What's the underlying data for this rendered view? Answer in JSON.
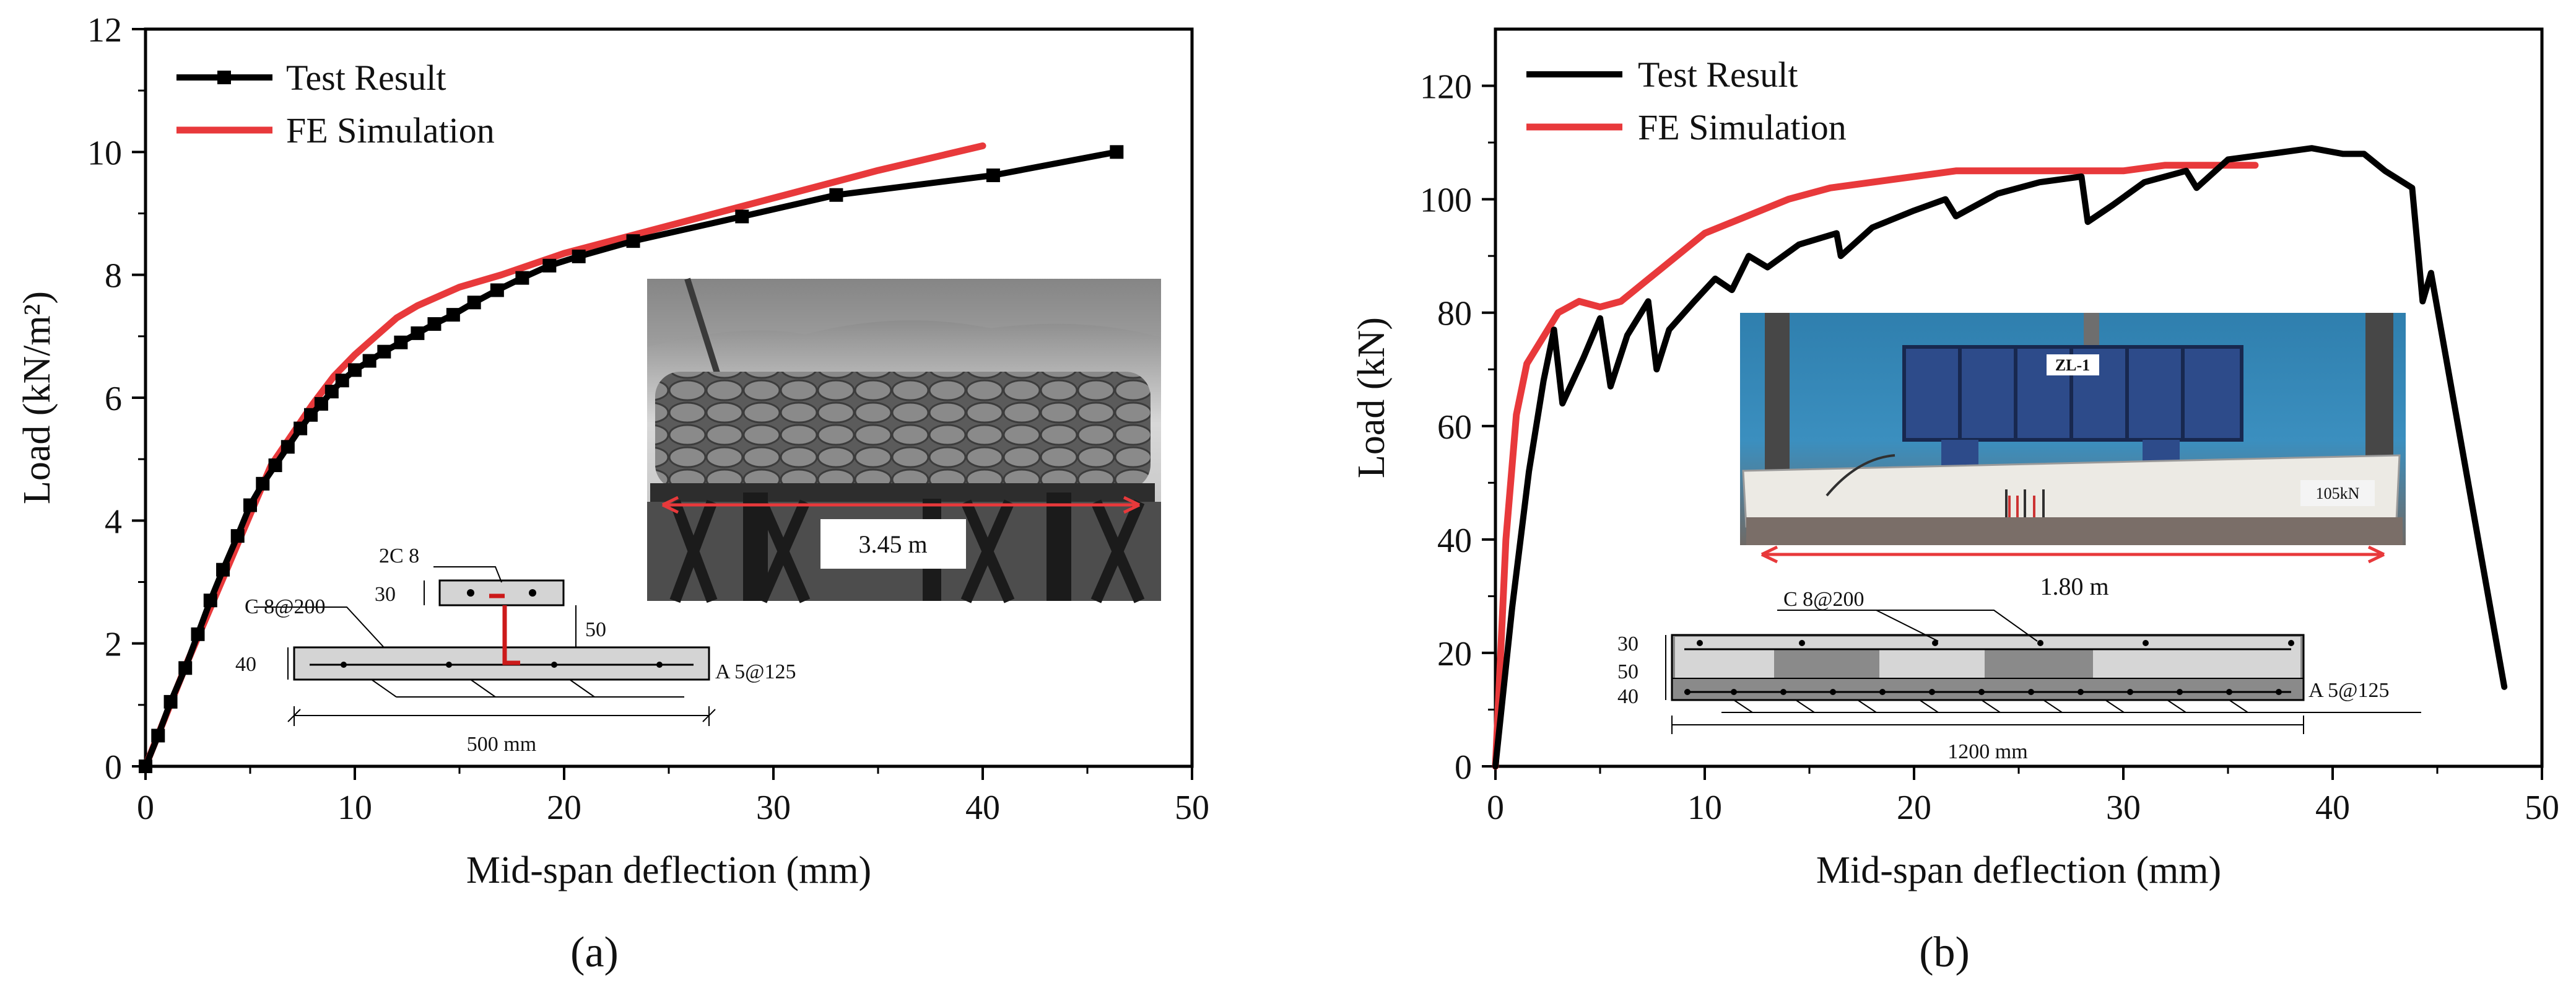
{
  "chart_data": [
    {
      "type": "line",
      "panel_label": "(a)",
      "xlabel": "Mid-span deflection (mm)",
      "ylabel": "Load (kN/m²)",
      "xlim": [
        0,
        50
      ],
      "ylim": [
        0,
        12
      ],
      "x_ticks": [
        "0",
        "10",
        "20",
        "30",
        "40",
        "50"
      ],
      "y_ticks": [
        "0",
        "2",
        "4",
        "6",
        "8",
        "10",
        "12"
      ],
      "legend_position": "top-left",
      "series": [
        {
          "name": "Test Result",
          "color": "#000000",
          "marker": "square",
          "x": [
            0,
            0.6,
            1.2,
            1.9,
            2.5,
            3.1,
            3.7,
            4.4,
            5,
            5.6,
            6.2,
            6.8,
            7.4,
            7.9,
            8.4,
            8.9,
            9.4,
            10,
            10.7,
            11.4,
            12.2,
            13,
            13.8,
            14.7,
            15.7,
            16.8,
            18,
            19.3,
            20.7,
            23.3,
            28.5,
            33,
            40.5,
            46.4
          ],
          "y": [
            0,
            0.5,
            1.05,
            1.6,
            2.15,
            2.7,
            3.2,
            3.75,
            4.25,
            4.6,
            4.9,
            5.2,
            5.5,
            5.72,
            5.9,
            6.1,
            6.28,
            6.45,
            6.6,
            6.75,
            6.9,
            7.05,
            7.2,
            7.35,
            7.55,
            7.75,
            7.95,
            8.15,
            8.3,
            8.55,
            8.95,
            9.3,
            9.62,
            10.0
          ]
        },
        {
          "name": "FE Simulation",
          "color": "#e8393b",
          "x": [
            0,
            2,
            4,
            6,
            8,
            9,
            10,
            11,
            12,
            13,
            14,
            15,
            17,
            20,
            25,
            30,
            35,
            40
          ],
          "y": [
            0,
            1.7,
            3.3,
            4.9,
            5.9,
            6.35,
            6.7,
            7.0,
            7.3,
            7.5,
            7.65,
            7.8,
            8.0,
            8.35,
            8.8,
            9.25,
            9.7,
            10.1
          ]
        }
      ],
      "inset": {
        "span_label": "3.45 m",
        "section": {
          "top_bar_label": "2C 8",
          "stirrup_label": "C 8@200",
          "bottom_bar_label": "A 5@125",
          "dim_30": "30",
          "dim_50": "50",
          "dim_40": "40",
          "width_label": "500 mm"
        }
      }
    },
    {
      "type": "line",
      "panel_label": "(b)",
      "xlabel": "Mid-span deflection (mm)",
      "ylabel": "Load (kN)",
      "xlim": [
        0,
        50
      ],
      "ylim": [
        0,
        130
      ],
      "x_ticks": [
        "0",
        "10",
        "20",
        "30",
        "40",
        "50"
      ],
      "y_ticks": [
        "0",
        "20",
        "40",
        "60",
        "80",
        "100",
        "120"
      ],
      "legend_position": "top-left",
      "series": [
        {
          "name": "Test Result",
          "color": "#000000",
          "x": [
            0,
            0.8,
            1.6,
            2.3,
            2.8,
            3.2,
            4.2,
            5.0,
            5.5,
            6.3,
            7.3,
            7.7,
            8.3,
            9.5,
            10.5,
            11.3,
            12.1,
            13.0,
            14.5,
            16.3,
            16.5,
            18.0,
            20.0,
            21.5,
            22.0,
            24.0,
            26.0,
            28.0,
            28.3,
            29.5,
            31.0,
            33.0,
            33.5,
            35.0,
            37.0,
            39.0,
            40.5,
            41.5,
            42.5,
            43.8,
            44.1,
            44.3,
            44.7,
            48.2
          ],
          "y": [
            0,
            28,
            52,
            68,
            77,
            64,
            72,
            79,
            67,
            76,
            82,
            70,
            77,
            82,
            86,
            84,
            90,
            88,
            92,
            94,
            90,
            95,
            98,
            100,
            97,
            101,
            103,
            104,
            96,
            99,
            103,
            105,
            102,
            107,
            108,
            109,
            108,
            108,
            105,
            102,
            90,
            82,
            87,
            14
          ]
        },
        {
          "name": "FE Simulation",
          "color": "#e8393b",
          "x": [
            0,
            0.5,
            1.0,
            1.5,
            2.5,
            3.0,
            4.0,
            5.0,
            6.0,
            7.0,
            8.0,
            10.0,
            12.0,
            14.0,
            16.0,
            20.0,
            22.0,
            26.0,
            30.0,
            32.0,
            34.0,
            36.3
          ],
          "y": [
            0,
            40,
            62,
            71,
            77,
            80,
            82,
            81,
            82,
            85,
            88,
            94,
            97,
            100,
            102,
            104,
            105,
            105,
            105,
            106,
            106,
            106
          ]
        }
      ],
      "inset": {
        "specimen_label": "ZL-1",
        "load_label": "105kN",
        "span_label": "1.80 m",
        "section": {
          "stirrup_label": "C 8@200",
          "bottom_bar_label": "A 5@125",
          "dim_30": "30",
          "dim_50": "50",
          "dim_40": "40",
          "width_label": "1200 mm"
        }
      }
    }
  ]
}
